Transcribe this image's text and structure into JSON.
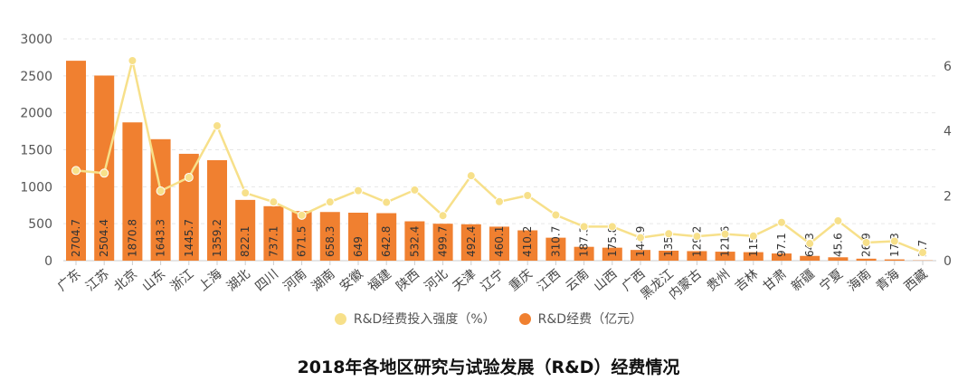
{
  "chart_data": {
    "type": "bar",
    "title": "2018年各地区研究与试验发展（R&D）经费情况",
    "categories": [
      "广东",
      "江苏",
      "北京",
      "山东",
      "浙江",
      "上海",
      "湖北",
      "四川",
      "河南",
      "湖南",
      "安徽",
      "福建",
      "陕西",
      "河北",
      "天津",
      "辽宁",
      "重庆",
      "江西",
      "云南",
      "山西",
      "广西",
      "黑龙江",
      "内蒙古",
      "贵州",
      "吉林",
      "甘肃",
      "新疆",
      "宁夏",
      "海南",
      "青海",
      "西藏"
    ],
    "series": [
      {
        "name": "R&D经费（亿元）",
        "type": "bar",
        "axis": "left",
        "color": "#f08030",
        "values": [
          2704.7,
          2504.4,
          1870.8,
          1643.3,
          1445.7,
          1359.2,
          822.1,
          737.1,
          671.5,
          658.3,
          649,
          642.8,
          532.4,
          499.7,
          492.4,
          460.1,
          410.2,
          310.7,
          187.3,
          175.8,
          144.9,
          135,
          129.2,
          121.6,
          115,
          97.1,
          64.3,
          45.6,
          26.9,
          17.3,
          3.7
        ]
      },
      {
        "name": "R&D经费投入强度（%）",
        "type": "line",
        "axis": "right",
        "color": "#f7e08a",
        "values": [
          2.78,
          2.7,
          6.17,
          2.15,
          2.57,
          4.16,
          2.09,
          1.81,
          1.4,
          1.81,
          2.16,
          1.8,
          2.18,
          1.39,
          2.62,
          1.82,
          2.01,
          1.41,
          1.05,
          1.05,
          0.71,
          0.83,
          0.75,
          0.82,
          0.76,
          1.18,
          0.53,
          1.23,
          0.56,
          0.6,
          0.25
        ]
      }
    ],
    "left_axis": {
      "ticks": [
        0,
        500,
        1000,
        1500,
        2000,
        2500,
        3000
      ],
      "range": [
        0,
        3000
      ]
    },
    "right_axis": {
      "ticks": [
        0,
        2,
        4,
        6
      ],
      "range": [
        0,
        6.84
      ]
    },
    "grid": true,
    "legend": "bottom"
  }
}
